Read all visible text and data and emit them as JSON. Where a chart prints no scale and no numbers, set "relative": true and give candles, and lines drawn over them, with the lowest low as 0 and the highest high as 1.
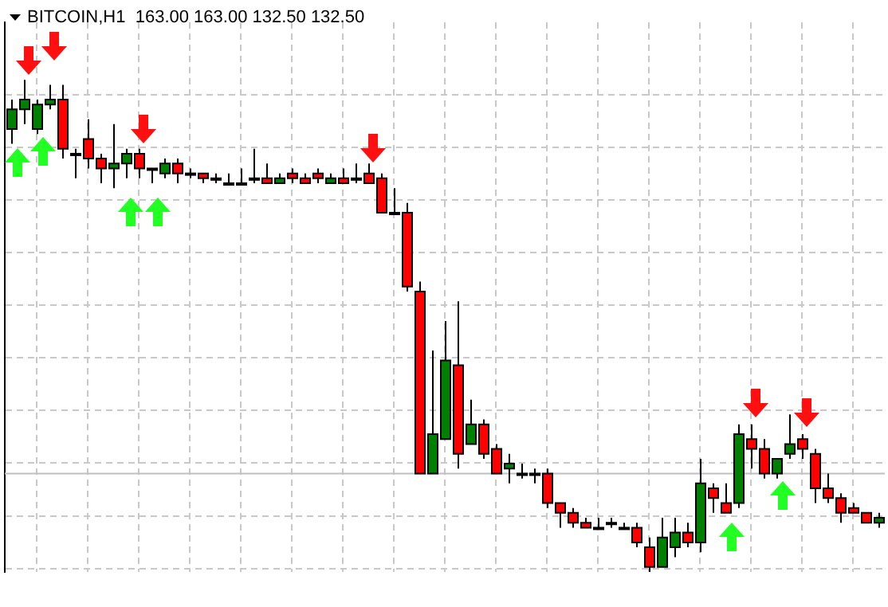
{
  "chart_data": {
    "type": "candlestick",
    "title": "BITCOIN,H1  163.00 163.00 132.50 132.50",
    "relative": true,
    "grid": true,
    "categories": [
      null,
      null,
      null,
      null,
      null,
      null,
      null,
      null,
      null,
      null,
      null,
      null,
      null,
      null,
      null,
      null,
      null,
      null,
      null,
      null,
      null,
      null,
      null,
      null,
      null,
      null,
      null,
      null,
      null,
      null,
      null,
      null,
      null,
      null,
      null,
      null,
      null,
      null,
      null,
      null,
      null,
      null,
      null,
      null,
      null,
      null,
      null,
      null,
      null,
      null,
      null,
      null,
      null,
      null,
      null,
      null,
      null,
      null,
      null,
      null,
      null,
      null,
      null,
      null,
      null,
      null,
      null,
      null,
      null
    ],
    "ohlc": [
      [
        0.9,
        0.96,
        0.87,
        0.94
      ],
      [
        0.94,
        1,
        0.91,
        0.96
      ],
      [
        0.9,
        0.96,
        0.89,
        0.95
      ],
      [
        0.95,
        0.99,
        0.94,
        0.96
      ],
      [
        0.96,
        0.99,
        0.84,
        0.86
      ],
      [
        0.85,
        0.86,
        0.8,
        0.85
      ],
      [
        0.88,
        0.92,
        0.82,
        0.84
      ],
      [
        0.84,
        0.85,
        0.79,
        0.82
      ],
      [
        0.82,
        0.91,
        0.78,
        0.83
      ],
      [
        0.83,
        0.86,
        0.8,
        0.85
      ],
      [
        0.85,
        0.86,
        0.8,
        0.82
      ],
      [
        0.82,
        0.82,
        0.79,
        0.82
      ],
      [
        0.81,
        0.84,
        0.8,
        0.83
      ],
      [
        0.83,
        0.84,
        0.79,
        0.81
      ],
      [
        0.81,
        0.82,
        0.8,
        0.81
      ],
      [
        0.81,
        0.81,
        0.79,
        0.8
      ],
      [
        0.8,
        0.81,
        0.79,
        0.8
      ],
      [
        0.79,
        0.81,
        0.79,
        0.79
      ],
      [
        0.79,
        0.82,
        0.79,
        0.79
      ],
      [
        0.8,
        0.86,
        0.79,
        0.8
      ],
      [
        0.8,
        0.83,
        0.79,
        0.79
      ],
      [
        0.79,
        0.81,
        0.79,
        0.8
      ],
      [
        0.81,
        0.82,
        0.79,
        0.8
      ],
      [
        0.8,
        0.81,
        0.79,
        0.79
      ],
      [
        0.81,
        0.82,
        0.79,
        0.8
      ],
      [
        0.79,
        0.81,
        0.79,
        0.8
      ],
      [
        0.8,
        0.82,
        0.79,
        0.79
      ],
      [
        0.8,
        0.83,
        0.79,
        0.8
      ],
      [
        0.81,
        0.83,
        0.79,
        0.79
      ],
      [
        0.8,
        0.81,
        0.73,
        0.73
      ],
      [
        0.73,
        0.78,
        0.73,
        0.73
      ],
      [
        0.73,
        0.75,
        0.57,
        0.58
      ],
      [
        0.57,
        0.59,
        0.2,
        0.2
      ],
      [
        0.2,
        0.45,
        0.2,
        0.28
      ],
      [
        0.27,
        0.51,
        0.27,
        0.43
      ],
      [
        0.42,
        0.55,
        0.21,
        0.24
      ],
      [
        0.26,
        0.35,
        0.26,
        0.3
      ],
      [
        0.3,
        0.31,
        0.23,
        0.24
      ],
      [
        0.25,
        0.26,
        0.2,
        0.2
      ],
      [
        0.21,
        0.24,
        0.18,
        0.22
      ],
      [
        0.2,
        0.22,
        0.19,
        0.2
      ],
      [
        0.2,
        0.21,
        0.18,
        0.2
      ],
      [
        0.2,
        0.21,
        0.13,
        0.14
      ],
      [
        0.14,
        0.14,
        0.09,
        0.12
      ],
      [
        0.12,
        0.13,
        0.09,
        0.1
      ],
      [
        0.1,
        0.11,
        0.09,
        0.09
      ],
      [
        0.09,
        0.11,
        0.09,
        0.09
      ],
      [
        0.1,
        0.11,
        0.09,
        0.1
      ],
      [
        0.09,
        0.1,
        0.09,
        0.09
      ],
      [
        0.09,
        0.1,
        0.05,
        0.06
      ],
      [
        0.05,
        0.07,
        0,
        0.01
      ],
      [
        0.01,
        0.11,
        0.01,
        0.07
      ],
      [
        0.05,
        0.11,
        0.03,
        0.08
      ],
      [
        0.08,
        0.1,
        0.05,
        0.06
      ],
      [
        0.06,
        0.23,
        0.04,
        0.18
      ],
      [
        0.17,
        0.18,
        0.12,
        0.15
      ],
      [
        0.14,
        0.18,
        0.12,
        0.12
      ],
      [
        0.14,
        0.3,
        0.13,
        0.28
      ],
      [
        0.27,
        0.3,
        0.21,
        0.25
      ],
      [
        0.25,
        0.27,
        0.19,
        0.2
      ],
      [
        0.2,
        0.23,
        0.19,
        0.23
      ],
      [
        0.24,
        0.32,
        0.23,
        0.26
      ],
      [
        0.27,
        0.28,
        0.23,
        0.25
      ],
      [
        0.24,
        0.25,
        0.14,
        0.17
      ],
      [
        0.17,
        0.2,
        0.14,
        0.15
      ],
      [
        0.15,
        0.16,
        0.1,
        0.12
      ],
      [
        0.13,
        0.14,
        0.12,
        0.12
      ],
      [
        0.12,
        0.12,
        0.1,
        0.1
      ],
      [
        0.1,
        0.12,
        0.09,
        0.11
      ]
    ],
    "colors": [
      "#008000",
      "#008000",
      "#008000",
      "#008000",
      "#ff0000",
      "#ff0000",
      "#ff0000",
      "#ff0000",
      "#008000",
      "#008000",
      "#ff0000",
      "#ff0000",
      "#008000",
      "#ff0000",
      "#ff0000",
      "#ff0000",
      "#ff0000",
      "#ff0000",
      "#ff0000",
      "#ff0000",
      "#ff0000",
      "#008000",
      "#ff0000",
      "#ff0000",
      "#ff0000",
      "#008000",
      "#ff0000",
      "#ff0000",
      "#ff0000",
      "#ff0000",
      "#ff0000",
      "#ff0000",
      "#ff0000",
      "#008000",
      "#008000",
      "#ff0000",
      "#008000",
      "#ff0000",
      "#ff0000",
      "#008000",
      "#ff0000",
      "#ff0000",
      "#ff0000",
      "#ff0000",
      "#ff0000",
      "#ff0000",
      "#ff0000",
      "#ff0000",
      "#ff0000",
      "#ff0000",
      "#ff0000",
      "#008000",
      "#008000",
      "#ff0000",
      "#008000",
      "#ff0000",
      "#ff0000",
      "#008000",
      "#ff0000",
      "#ff0000",
      "#008000",
      "#008000",
      "#ff0000",
      "#ff0000",
      "#ff0000",
      "#ff0000",
      "#ff0000",
      "#ff0000",
      "#008000"
    ],
    "ref_lines": [
      {
        "axis": "y",
        "value": 0.2,
        "color": "#c0c0c0"
      }
    ]
  }
}
